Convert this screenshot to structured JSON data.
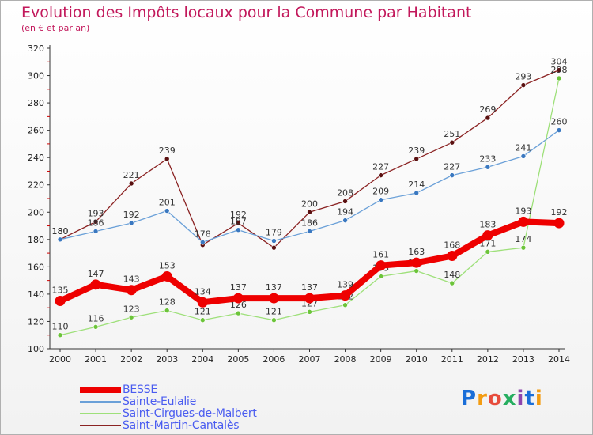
{
  "header": {
    "title": "Evolution des Impôts locaux pour la Commune par Habitant",
    "subtitle": "(en € et par an)"
  },
  "logo": {
    "text": "Proxiti",
    "colors": [
      "#1a6ed8",
      "#f39c12",
      "#e74c3c",
      "#27ae60",
      "#8e44ad"
    ]
  },
  "chart_data": {
    "type": "line",
    "title": "Evolution des Impôts locaux pour la Commune par Habitant",
    "subtitle": "(en € et par an)",
    "xlabel": "",
    "ylabel": "",
    "x": [
      "2000",
      "2001",
      "2002",
      "2003",
      "2004",
      "2005",
      "2006",
      "2007",
      "2008",
      "2009",
      "2010",
      "2011",
      "2012",
      "2013",
      "2014"
    ],
    "ylim": [
      100,
      320
    ],
    "yticks": [
      100,
      120,
      140,
      160,
      180,
      200,
      220,
      240,
      260,
      280,
      300,
      320
    ],
    "grid": false,
    "legend_position": "bottom-left",
    "series": [
      {
        "name": "Saint-Martin-Cantalès",
        "color": "#8b2323",
        "markerColor": "#5a1010",
        "values": [
          180,
          193,
          221,
          239,
          176,
          192,
          174,
          200,
          208,
          227,
          239,
          251,
          269,
          293,
          304
        ],
        "labels": [
          "180",
          "193",
          "221",
          "239",
          "",
          "192",
          "",
          "200",
          "208",
          "227",
          "239",
          "251",
          "269",
          "293",
          "304"
        ]
      },
      {
        "name": "Sainte-Eulalie",
        "color": "#6aa0d8",
        "markerColor": "#3a78c0",
        "values": [
          180,
          186,
          192,
          201,
          178,
          187,
          179,
          186,
          194,
          209,
          214,
          227,
          233,
          241,
          260
        ],
        "labels": [
          "180",
          "186",
          "192",
          "201",
          "178",
          "187",
          "179",
          "186",
          "194",
          "209",
          "214",
          "227",
          "233",
          "241",
          "260"
        ]
      },
      {
        "name": "Saint-Cirgues-de-Malbert",
        "color": "#9ee07a",
        "markerColor": "#6cc43a",
        "values": [
          110,
          116,
          123,
          128,
          121,
          126,
          121,
          127,
          132,
          153,
          157,
          148,
          171,
          174,
          298
        ],
        "labels": [
          "110",
          "116",
          "123",
          "128",
          "121",
          "126",
          "121",
          "127",
          "132",
          "153",
          "157",
          "148",
          "171",
          "174",
          "298"
        ]
      },
      {
        "name": "BESSE",
        "color": "#ee0000",
        "markerColor": "#cc0000",
        "values": [
          135,
          147,
          143,
          153,
          134,
          137,
          137,
          137,
          139,
          161,
          163,
          168,
          183,
          193,
          192
        ],
        "labels": [
          "135",
          "147",
          "143",
          "153",
          "134",
          "137",
          "137",
          "137",
          "139",
          "161",
          "163",
          "168",
          "183",
          "193",
          "192"
        ]
      }
    ]
  },
  "legend": [
    {
      "name": "BESSE",
      "color": "#ee0000"
    },
    {
      "name": "Sainte-Eulalie",
      "color": "#6aa0d8"
    },
    {
      "name": "Saint-Cirgues-de-Malbert",
      "color": "#9ee07a"
    },
    {
      "name": "Saint-Martin-Cantalès",
      "color": "#8b2323"
    }
  ]
}
